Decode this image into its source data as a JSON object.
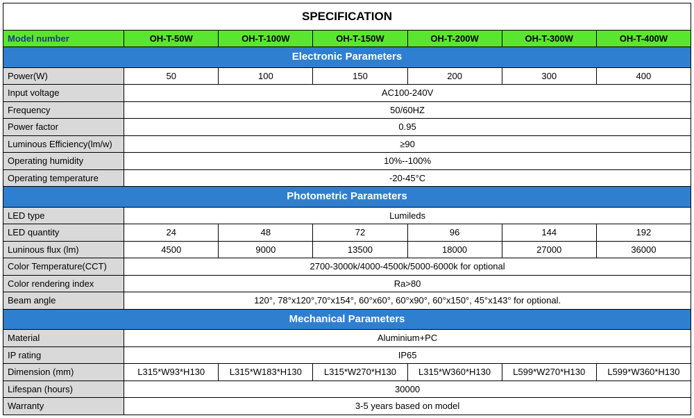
{
  "title": "SPECIFICATION",
  "header": {
    "label": "Model number",
    "models": [
      "OH-T-50W",
      "OH-T-100W",
      "OH-T-150W",
      "OH-T-200W",
      "OH-T-300W",
      "OH-T-400W"
    ]
  },
  "colors": {
    "green": "#5ae62e",
    "blue": "#2f7fd1",
    "gray": "#d9d9d9",
    "border": "#000000",
    "header_label_text": "#1f3a8a"
  },
  "sections": [
    {
      "title": "Electronic Parameters",
      "rows": [
        {
          "label": "Power(W)",
          "values": [
            "50",
            "100",
            "150",
            "200",
            "300",
            "400"
          ]
        },
        {
          "label": "Input voltage",
          "span": "AC100-240V"
        },
        {
          "label": "Frequency",
          "span": "50/60HZ"
        },
        {
          "label": "Power factor",
          "span": "0.95"
        },
        {
          "label": "Luminous Efficiency(lm/w)",
          "span": "≥90"
        },
        {
          "label": "Operating humidity",
          "span": "10%--100%"
        },
        {
          "label": "Operating temperature",
          "span": "-20-45°C"
        }
      ]
    },
    {
      "title": "Photometric Parameters",
      "rows": [
        {
          "label": "LED type",
          "span": "Lumileds"
        },
        {
          "label": "LED quantity",
          "values": [
            "24",
            "48",
            "72",
            "96",
            "144",
            "192"
          ]
        },
        {
          "label": "Luninous flux (lm)",
          "values": [
            "4500",
            "9000",
            "13500",
            "18000",
            "27000",
            "36000"
          ]
        },
        {
          "label": "Color Temperature(CCT)",
          "span": "2700-3000k/4000-4500k/5000-6000k for optional"
        },
        {
          "label": "Color rendering index",
          "span": "Ra>80"
        },
        {
          "label": "Beam angle",
          "span": "120°, 78°x120°,70°x154°, 60°x60°, 60°x90°, 60°x150°, 45°x143° for optional."
        }
      ]
    },
    {
      "title": "Mechanical Parameters",
      "rows": [
        {
          "label": "Material",
          "span": "Aluminium+PC"
        },
        {
          "label": "IP rating",
          "span": "IP65"
        },
        {
          "label": "Dimension  (mm)",
          "values": [
            "L315*W93*H130",
            "L315*W183*H130",
            "L315*W270*H130",
            "L315*W360*H130",
            "L599*W270*H130",
            "L599*W360*H130"
          ]
        },
        {
          "label": "Lifespan (hours)",
          "span": "30000"
        },
        {
          "label": "Warranty",
          "span": "3-5 years based on model"
        }
      ]
    }
  ]
}
